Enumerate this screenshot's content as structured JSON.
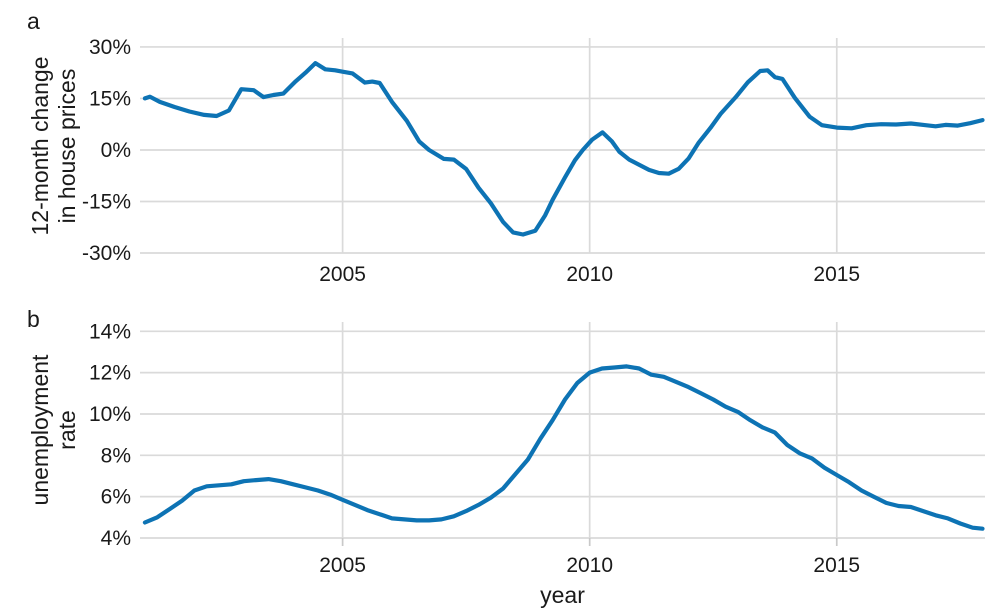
{
  "figure": {
    "line_color": "#0d73b4",
    "grid_color": "#dadada",
    "tick_color": "#c9c9c9",
    "text_color": "#1a1a1a",
    "background": "#ffffff",
    "xlabel": "year"
  },
  "chart_data": [
    {
      "type": "line",
      "panel_label": "a",
      "ylabel": "12-month change in house prices",
      "ylabel_lines": [
        "12-month change",
        "in house prices"
      ],
      "xlabel": "",
      "legend": "none",
      "grid": true,
      "xlim": [
        2000.9,
        2018.0
      ],
      "ylim": [
        -30,
        32.6
      ],
      "x_ticks": [
        2005,
        2010,
        2015
      ],
      "x_tick_labels": [
        "2005",
        "2010",
        "2015"
      ],
      "y_ticks": [
        30,
        15,
        0,
        -15,
        -30
      ],
      "y_tick_labels": [
        "30%",
        "15%",
        "0%",
        "-15%",
        "-30%"
      ],
      "series": [
        {
          "name": "12-month change in house prices",
          "x": [
            2001.0,
            2001.1,
            2001.3,
            2001.6,
            2001.9,
            2002.2,
            2002.45,
            2002.7,
            2002.95,
            2003.2,
            2003.4,
            2003.6,
            2003.8,
            2004.05,
            2004.25,
            2004.45,
            2004.65,
            2004.85,
            2005.0,
            2005.2,
            2005.45,
            2005.6,
            2005.75,
            2006.0,
            2006.3,
            2006.55,
            2006.75,
            2007.05,
            2007.25,
            2007.5,
            2007.75,
            2008.0,
            2008.25,
            2008.45,
            2008.65,
            2008.9,
            2009.1,
            2009.25,
            2009.5,
            2009.7,
            2009.86,
            2010.05,
            2010.26,
            2010.45,
            2010.6,
            2010.8,
            2011.0,
            2011.2,
            2011.4,
            2011.6,
            2011.8,
            2012.0,
            2012.2,
            2012.45,
            2012.65,
            2012.95,
            2013.2,
            2013.45,
            2013.6,
            2013.75,
            2013.9,
            2014.15,
            2014.45,
            2014.7,
            2015.0,
            2015.3,
            2015.6,
            2015.9,
            2016.2,
            2016.5,
            2016.8,
            2017.0,
            2017.2,
            2017.45,
            2017.7,
            2017.95
          ],
          "y": [
            15.0,
            15.5,
            14.0,
            12.5,
            11.2,
            10.2,
            9.9,
            11.5,
            17.7,
            17.4,
            15.4,
            16.0,
            16.4,
            20.0,
            22.5,
            25.3,
            23.5,
            23.2,
            22.8,
            22.3,
            19.6,
            19.9,
            19.5,
            14.0,
            8.5,
            2.5,
            0.0,
            -2.6,
            -2.8,
            -5.5,
            -11.0,
            -15.5,
            -21.0,
            -24.0,
            -24.6,
            -23.5,
            -19.0,
            -14.5,
            -8.0,
            -3.0,
            0.0,
            3.0,
            5.1,
            2.5,
            -0.5,
            -2.8,
            -4.3,
            -5.8,
            -6.7,
            -6.9,
            -5.5,
            -2.5,
            2.0,
            6.5,
            10.5,
            15.3,
            19.7,
            23.0,
            23.2,
            21.2,
            20.7,
            15.2,
            9.7,
            7.2,
            6.5,
            6.3,
            7.2,
            7.5,
            7.4,
            7.7,
            7.2,
            6.9,
            7.3,
            7.1,
            7.8,
            8.7
          ]
        }
      ]
    },
    {
      "type": "line",
      "panel_label": "b",
      "ylabel": "unemployment rate",
      "ylabel_lines": [
        "unemployment",
        "rate"
      ],
      "xlabel": "year",
      "legend": "none",
      "grid": true,
      "xlim": [
        2000.9,
        2018.0
      ],
      "ylim": [
        4,
        14.45
      ],
      "x_ticks": [
        2005,
        2010,
        2015
      ],
      "x_tick_labels": [
        "2005",
        "2010",
        "2015"
      ],
      "y_ticks": [
        14,
        12,
        10,
        8,
        6,
        4
      ],
      "y_tick_labels": [
        "14%",
        "12%",
        "10%",
        "8%",
        "6%",
        "4%"
      ],
      "series": [
        {
          "name": "unemployment rate",
          "x": [
            2001.0,
            2001.25,
            2001.5,
            2001.75,
            2002.0,
            2002.25,
            2002.5,
            2002.75,
            2003.0,
            2003.25,
            2003.5,
            2003.75,
            2004.0,
            2004.25,
            2004.5,
            2004.75,
            2005.0,
            2005.25,
            2005.5,
            2005.75,
            2006.0,
            2006.25,
            2006.5,
            2006.75,
            2007.0,
            2007.25,
            2007.5,
            2007.75,
            2008.0,
            2008.25,
            2008.5,
            2008.75,
            2009.0,
            2009.25,
            2009.5,
            2009.75,
            2010.0,
            2010.25,
            2010.5,
            2010.75,
            2011.0,
            2011.25,
            2011.5,
            2011.75,
            2012.0,
            2012.25,
            2012.5,
            2012.75,
            2013.0,
            2013.25,
            2013.5,
            2013.75,
            2014.0,
            2014.25,
            2014.5,
            2014.75,
            2015.0,
            2015.25,
            2015.5,
            2015.75,
            2016.0,
            2016.25,
            2016.5,
            2016.75,
            2017.0,
            2017.25,
            2017.5,
            2017.75,
            2017.95
          ],
          "y": [
            4.75,
            5.0,
            5.4,
            5.8,
            6.3,
            6.5,
            6.55,
            6.6,
            6.75,
            6.8,
            6.85,
            6.75,
            6.6,
            6.45,
            6.3,
            6.1,
            5.85,
            5.6,
            5.35,
            5.15,
            4.95,
            4.9,
            4.85,
            4.85,
            4.9,
            5.05,
            5.3,
            5.6,
            5.95,
            6.4,
            7.1,
            7.8,
            8.8,
            9.7,
            10.7,
            11.5,
            12.0,
            12.2,
            12.25,
            12.3,
            12.2,
            11.9,
            11.8,
            11.55,
            11.3,
            11.0,
            10.7,
            10.35,
            10.1,
            9.7,
            9.35,
            9.1,
            8.5,
            8.1,
            7.85,
            7.4,
            7.05,
            6.7,
            6.3,
            6.0,
            5.7,
            5.55,
            5.5,
            5.3,
            5.1,
            4.95,
            4.7,
            4.5,
            4.45
          ]
        }
      ]
    }
  ]
}
